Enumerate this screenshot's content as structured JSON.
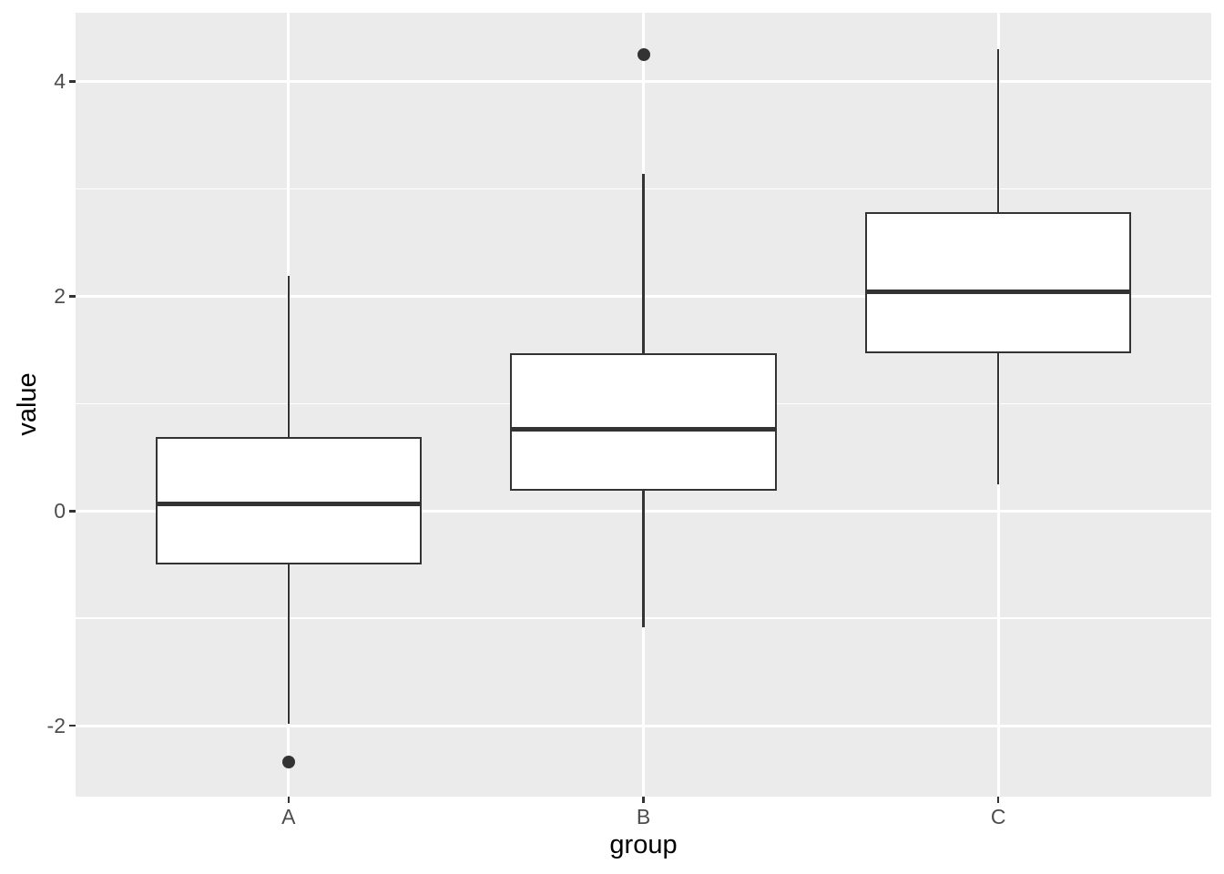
{
  "chart_data": {
    "type": "boxplot",
    "title": "",
    "xlabel": "group",
    "ylabel": "value",
    "categories": [
      "A",
      "B",
      "C"
    ],
    "series": [
      {
        "group": "A",
        "whisker_low": -1.98,
        "q1": -0.5,
        "median": 0.07,
        "q3": 0.69,
        "whisker_high": 2.19,
        "outliers": [
          -2.34
        ]
      },
      {
        "group": "B",
        "whisker_low": -1.08,
        "q1": 0.19,
        "median": 0.76,
        "q3": 1.47,
        "whisker_high": 3.14,
        "outliers": [
          4.25
        ]
      },
      {
        "group": "C",
        "whisker_low": 0.25,
        "q1": 1.47,
        "median": 2.04,
        "q3": 2.78,
        "whisker_high": 4.3,
        "outliers": []
      }
    ],
    "y_ticks": [
      {
        "value": -2,
        "label": "-2"
      },
      {
        "value": 0,
        "label": "0"
      },
      {
        "value": 2,
        "label": "2"
      },
      {
        "value": 4,
        "label": "4"
      }
    ],
    "y_minor_ticks": [
      -1,
      1,
      3
    ],
    "ylim": [
      -2.66,
      4.64
    ],
    "grid": true,
    "legend": false,
    "box_width_fraction": 0.75,
    "style": {
      "panel_bg": "#EBEBEB",
      "grid_color": "#FFFFFF",
      "box_border": "#333333",
      "box_fill": "#FFFFFF",
      "outlier_color": "#333333",
      "tick_mark_color": "#333333",
      "tick_label_color": "#4D4D4D",
      "axis_title_color": "#000000"
    }
  }
}
